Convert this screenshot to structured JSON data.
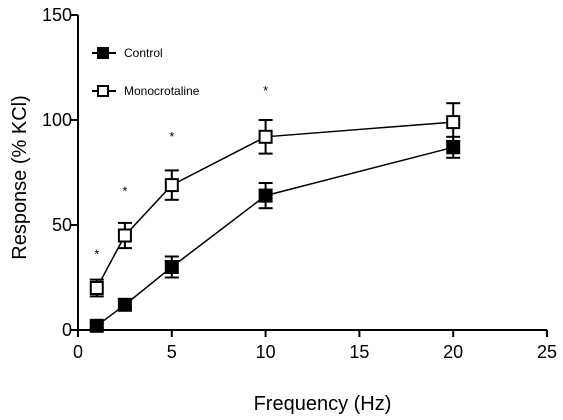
{
  "chart_data": {
    "type": "line",
    "title": "",
    "xlabel": "Frequency (Hz)",
    "ylabel": "Response (% KCl)",
    "xlim": [
      0,
      25
    ],
    "ylim": [
      0,
      150
    ],
    "x_ticks": [
      0,
      5,
      10,
      15,
      20,
      25
    ],
    "y_ticks": [
      0,
      50,
      100,
      150
    ],
    "x": [
      1,
      2.5,
      5,
      10,
      20
    ],
    "series": [
      {
        "name": "Control",
        "marker": "filled-square",
        "color": "#000000",
        "values": [
          2,
          12,
          30,
          64,
          87
        ],
        "error": [
          1,
          2,
          5,
          6,
          5
        ]
      },
      {
        "name": "Monocrotaline",
        "marker": "open-square",
        "color": "#000000",
        "values": [
          20,
          45,
          69,
          92,
          99
        ],
        "error": [
          4,
          6,
          7,
          8,
          9
        ]
      }
    ],
    "annotations": [
      {
        "text": "*",
        "x": 1,
        "y": 34
      },
      {
        "text": "*",
        "x": 2.5,
        "y": 64
      },
      {
        "text": "*",
        "x": 5,
        "y": 90
      },
      {
        "text": "*",
        "x": 10,
        "y": 112
      }
    ],
    "legend_position": "top-left",
    "grid": false
  }
}
